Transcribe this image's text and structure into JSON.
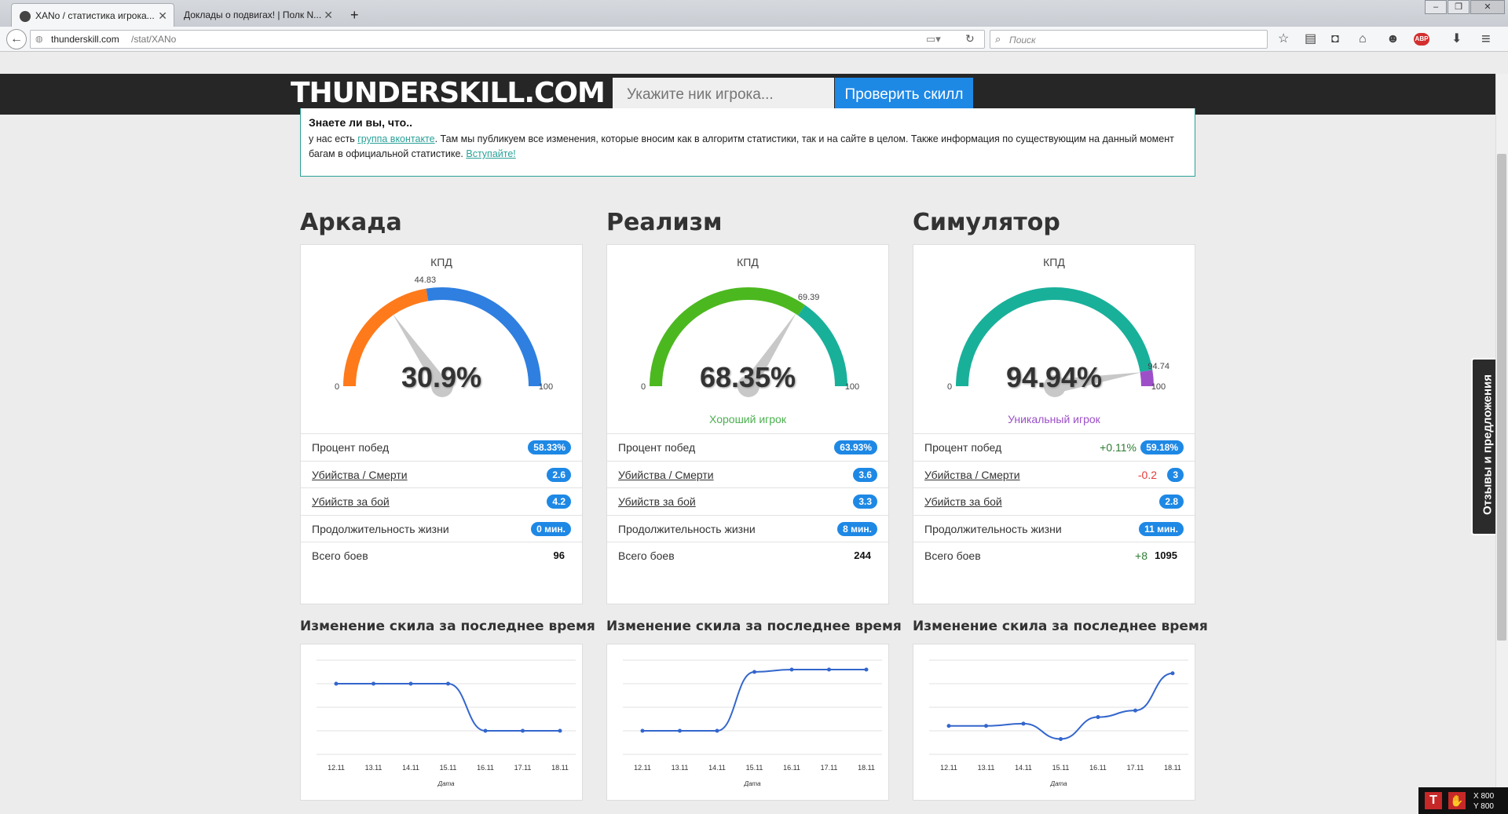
{
  "browser": {
    "tabs": [
      {
        "title": "XANo / статистика игрока..."
      },
      {
        "title": "Доклады о подвигах! | Полк N..."
      }
    ],
    "url_domain": "thunderskill.com",
    "url_path": "/stat/XANo",
    "search_placeholder": "Поиск"
  },
  "header": {
    "logo": "THUNDERSKILL.COM",
    "nick_placeholder": "Укажите ник игрока...",
    "check_button": "Проверить скилл"
  },
  "info": {
    "title": "Знаете ли вы, что..",
    "text_1": "у нас есть ",
    "link_1": "группа вконтакте",
    "text_2": ". Там мы публикуем все изменения, которые вносим как в алгоритм статистики, так и на сайте в целом. Также информация по существующим на данный момент багам в официальной статистике. ",
    "link_2": "Вступайте!"
  },
  "modes": [
    {
      "title": "Аркада",
      "kpd_label": "КПД",
      "kpd_value": "30.9%",
      "kpd": 30.9,
      "marker": 44.83,
      "marker_label": "44.83",
      "rank": "",
      "rank_color": "#4caf50",
      "gauge_stops": [
        {
          "to": 44.83,
          "color": "#ff7a1a"
        },
        {
          "to": 100,
          "color": "#2f7fe0"
        }
      ],
      "min_label": "0",
      "max_label": "100",
      "stats": {
        "winrate_label": "Процент побед",
        "winrate": "58.33%",
        "winrate_delta": "",
        "kd_label": "Убийства / Смерти",
        "kd": "2.6",
        "kd_delta": "",
        "kpb_label": "Убийств за бой",
        "kpb": "4.2",
        "life_label": "Продолжительность жизни",
        "life": "0 мин.",
        "battles_label": "Всего боев",
        "battles": "96",
        "battles_delta": ""
      }
    },
    {
      "title": "Реализм",
      "kpd_label": "КПД",
      "kpd_value": "68.35%",
      "kpd": 68.35,
      "marker": 69.39,
      "marker_label": "69.39",
      "rank": "Хороший игрок",
      "rank_color": "#4caf50",
      "gauge_stops": [
        {
          "to": 69.39,
          "color": "#4cb81f"
        },
        {
          "to": 100,
          "color": "#19b09a"
        }
      ],
      "min_label": "0",
      "max_label": "100",
      "stats": {
        "winrate_label": "Процент побед",
        "winrate": "63.93%",
        "winrate_delta": "",
        "kd_label": "Убийства / Смерти",
        "kd": "3.6",
        "kd_delta": "",
        "kpb_label": "Убийств за бой",
        "kpb": "3.3",
        "life_label": "Продолжительность жизни",
        "life": "8 мин.",
        "battles_label": "Всего боев",
        "battles": "244",
        "battles_delta": ""
      }
    },
    {
      "title": "Симулятор",
      "kpd_label": "КПД",
      "kpd_value": "94.94%",
      "kpd": 94.94,
      "marker": 94.74,
      "marker_label": "94.74",
      "rank": "Уникальный игрок",
      "rank_color": "#9c4fc7",
      "gauge_stops": [
        {
          "to": 94.74,
          "color": "#19b09a"
        },
        {
          "to": 100,
          "color": "#9c4fc7"
        }
      ],
      "min_label": "0",
      "max_label": "100",
      "stats": {
        "winrate_label": "Процент побед",
        "winrate": "59.18%",
        "winrate_delta": "+0.11%",
        "kd_label": "Убийства / Смерти",
        "kd": "3",
        "kd_delta": "-0.2",
        "kpb_label": "Убийств за бой",
        "kpb": "2.8",
        "life_label": "Продолжительность жизни",
        "life": "11 мин.",
        "battles_label": "Всего боев",
        "battles": "1095",
        "battles_delta": "+8"
      }
    }
  ],
  "chart_section_title": "Изменение скила за последнее время",
  "chart_data": [
    {
      "type": "line",
      "title": "",
      "xlabel": "Дата",
      "categories": [
        "12.11",
        "13.11",
        "14.11",
        "15.11",
        "16.11",
        "17.11",
        "18.11"
      ],
      "values": [
        3,
        3,
        3,
        3,
        1,
        1,
        1
      ],
      "ylim": [
        0,
        4
      ],
      "color": "#3366cc"
    },
    {
      "type": "line",
      "title": "",
      "xlabel": "Дата",
      "categories": [
        "12.11",
        "13.11",
        "14.11",
        "15.11",
        "16.11",
        "17.11",
        "18.11"
      ],
      "values": [
        1,
        1,
        1,
        3.5,
        3.6,
        3.6,
        3.6
      ],
      "ylim": [
        0,
        4
      ],
      "color": "#3366cc"
    },
    {
      "type": "line",
      "title": "",
      "xlabel": "Дата",
      "categories": [
        "12.11",
        "13.11",
        "14.11",
        "15.11",
        "16.11",
        "17.11",
        "18.11"
      ],
      "values": [
        1.6,
        1.6,
        1.7,
        1,
        2,
        2.3,
        4
      ],
      "ylim": [
        0.3,
        4.6
      ],
      "color": "#3366cc"
    }
  ],
  "feedback": "Отзывы и предложения",
  "overlay": {
    "x_label": "X 800",
    "y_label": "Y 800"
  }
}
